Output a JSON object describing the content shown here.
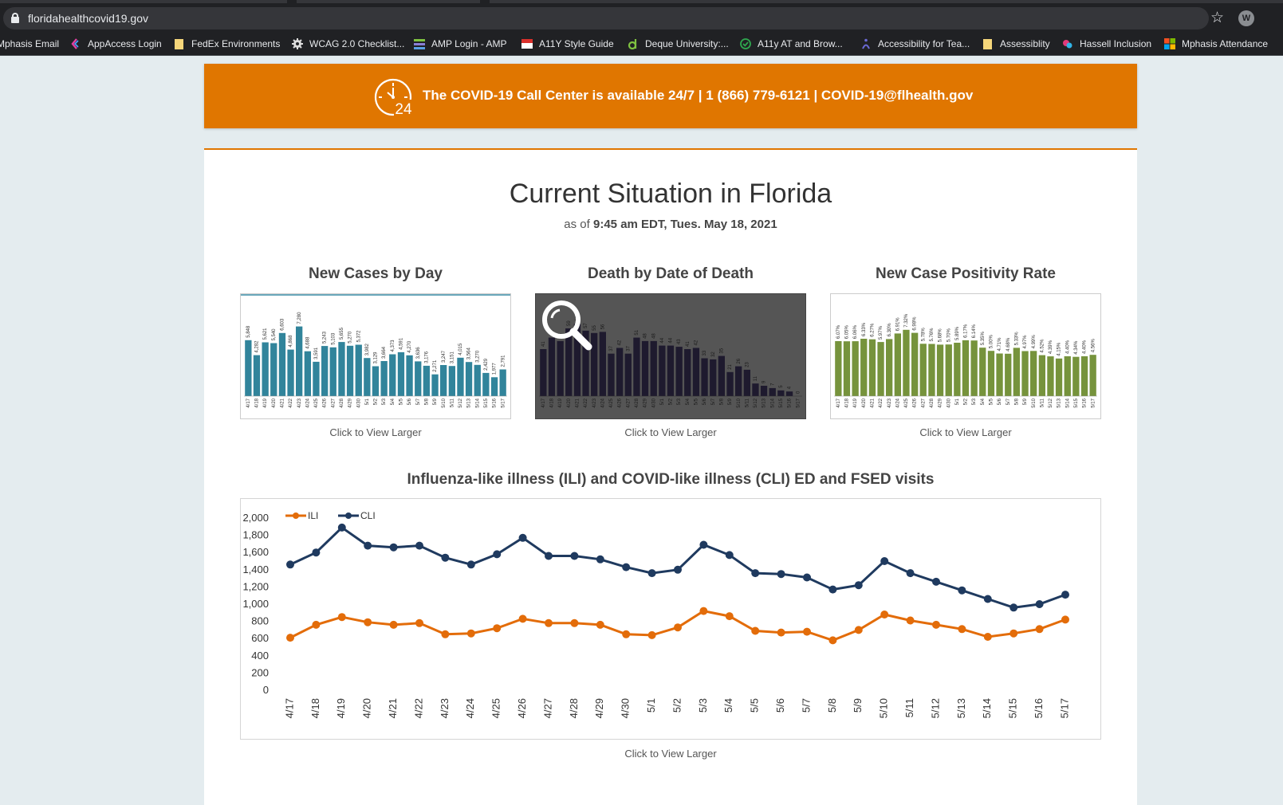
{
  "browser": {
    "url": "floridahealthcovid19.gov",
    "profile_initial": "W",
    "bookmarks": [
      {
        "label": "Mphasis Email",
        "icon": "mail-icon"
      },
      {
        "label": "AppAccess Login",
        "icon": "app-icon"
      },
      {
        "label": "FedEx Environments",
        "icon": "folder-icon"
      },
      {
        "label": "WCAG 2.0 Checklist...",
        "icon": "gear-icon"
      },
      {
        "label": "AMP Login - AMP",
        "icon": "stack-icon"
      },
      {
        "label": "A11Y Style Guide",
        "icon": "style-guide-icon"
      },
      {
        "label": "Deque University:...",
        "icon": "deque-icon"
      },
      {
        "label": "A11y AT and Brow...",
        "icon": "check-circle-icon"
      },
      {
        "label": "Accessibility for Tea...",
        "icon": "accessibility-icon"
      },
      {
        "label": "Assessiblity",
        "icon": "folder-icon"
      },
      {
        "label": "Hassell Inclusion",
        "icon": "hassell-icon"
      },
      {
        "label": "Mphasis Attendance",
        "icon": "windows-icon"
      }
    ]
  },
  "banner": {
    "text": "The COVID-19 Call Center is available 24/7 | 1 (866) 779-6121 | COVID-19@flhealth.gov",
    "icon_label": "24"
  },
  "page": {
    "title": "Current Situation in Florida",
    "subtitle_prefix": "as of",
    "subtitle_time": "9:45 am EDT, Tues. May 18, 2021"
  },
  "colors": {
    "orange": "#e07600",
    "teal_bar": "#31849b",
    "dark_bar": "#1e1a2e",
    "green_bar": "#76933c",
    "ili_line": "#e36c09",
    "cli_line": "#1f3a5f"
  },
  "chart_data": [
    {
      "type": "bar",
      "title": "New Cases by Day",
      "caption": "Click to View Larger",
      "categories": [
        "4/17",
        "4/18",
        "4/19",
        "4/20",
        "4/21",
        "4/22",
        "4/23",
        "4/24",
        "4/25",
        "4/26",
        "4/27",
        "4/28",
        "4/29",
        "4/30",
        "5/1",
        "5/2",
        "5/3",
        "5/4",
        "5/5",
        "5/6",
        "5/7",
        "5/8",
        "5/9",
        "5/10",
        "5/11",
        "5/12",
        "5/13",
        "5/14",
        "5/15",
        "5/16",
        "5/17"
      ],
      "values": [
        5848,
        4282,
        5621,
        5540,
        6603,
        4868,
        7280,
        4688,
        3591,
        5243,
        5103,
        5655,
        5270,
        5372,
        3982,
        3129,
        3664,
        4373,
        4591,
        4270,
        3636,
        3176,
        2271,
        3247,
        3151,
        4015,
        3564,
        3270,
        2429,
        1977,
        2791
      ],
      "ylim": [
        0,
        9000
      ]
    },
    {
      "type": "bar",
      "title": "Death by Date of Death",
      "caption": "Click to View Larger",
      "categories": [
        "4/17",
        "4/18",
        "4/19",
        "4/20",
        "4/21",
        "4/22",
        "4/23",
        "4/24",
        "4/25",
        "4/26",
        "4/27",
        "4/28",
        "4/29",
        "4/30",
        "5/1",
        "5/2",
        "5/3",
        "5/4",
        "5/5",
        "5/6",
        "5/7",
        "5/8",
        "5/9",
        "5/10",
        "5/11",
        "5/12",
        "5/13",
        "5/14",
        "5/15",
        "5/16",
        "5/17"
      ],
      "values": [
        41,
        51,
        48,
        59,
        63,
        57,
        55,
        56,
        37,
        42,
        37,
        51,
        48,
        48,
        44,
        44,
        43,
        41,
        42,
        33,
        32,
        35,
        21,
        26,
        23,
        11,
        9,
        7,
        5,
        4,
        0
      ],
      "ylim": [
        0,
        75
      ]
    },
    {
      "type": "bar",
      "title": "New Case Positivity Rate",
      "caption": "Click to View Larger",
      "categories": [
        "4/17",
        "4/18",
        "4/19",
        "4/20",
        "4/21",
        "4/22",
        "4/23",
        "4/24",
        "4/25",
        "4/26",
        "4/27",
        "4/28",
        "4/29",
        "4/30",
        "5/1",
        "5/2",
        "5/3",
        "5/4",
        "5/5",
        "5/6",
        "5/7",
        "5/8",
        "5/9",
        "5/10",
        "5/11",
        "5/12",
        "5/13",
        "5/14",
        "5/15",
        "5/16",
        "5/17"
      ],
      "values": [
        6.07,
        6.05,
        6.06,
        6.33,
        6.27,
        5.97,
        6.3,
        6.91,
        7.32,
        6.98,
        5.78,
        5.76,
        5.68,
        5.7,
        5.89,
        6.17,
        6.14,
        5.35,
        5.0,
        4.71,
        4.68,
        5.33,
        4.97,
        4.99,
        4.52,
        4.39,
        4.15,
        4.4,
        4.34,
        4.4,
        4.56
      ],
      "value_labels": [
        "6.07%",
        "6.05%",
        "6.06%",
        "6.33%",
        "6.27%",
        "5.97%",
        "6.30%",
        "6.91%",
        "7.32%",
        "6.98%",
        "5.78%",
        "5.76%",
        "5.68%",
        "5.70%",
        "5.89%",
        "6.17%",
        "6.14%",
        "5.35%",
        "5.00%",
        "4.71%",
        "4.68%",
        "5.33%",
        "4.97%",
        "4.99%",
        "4.52%",
        "4.39%",
        "4.15%",
        "4.40%",
        "4.34%",
        "4.40%",
        "4.56%"
      ],
      "ylim": [
        0,
        9.5
      ]
    },
    {
      "type": "line",
      "title": "Influenza-like illness (ILI) and COVID-like illness (CLI) ED and FSED visits",
      "caption": "Click to View Larger",
      "x": [
        "4/17",
        "4/18",
        "4/19",
        "4/20",
        "4/21",
        "4/22",
        "4/23",
        "4/24",
        "4/25",
        "4/26",
        "4/27",
        "4/28",
        "4/29",
        "4/30",
        "5/1",
        "5/2",
        "5/3",
        "5/4",
        "5/5",
        "5/6",
        "5/7",
        "5/8",
        "5/9",
        "5/10",
        "5/11",
        "5/12",
        "5/13",
        "5/14",
        "5/15",
        "5/16",
        "5/17"
      ],
      "series": [
        {
          "name": "ILI",
          "values": [
            610,
            760,
            850,
            790,
            760,
            780,
            650,
            660,
            720,
            830,
            780,
            780,
            760,
            650,
            640,
            730,
            920,
            860,
            690,
            670,
            680,
            580,
            700,
            880,
            810,
            760,
            710,
            620,
            660,
            710,
            820
          ]
        },
        {
          "name": "CLI",
          "values": [
            1460,
            1600,
            1890,
            1680,
            1660,
            1680,
            1540,
            1460,
            1580,
            1770,
            1560,
            1560,
            1520,
            1430,
            1360,
            1400,
            1690,
            1570,
            1360,
            1350,
            1310,
            1170,
            1220,
            1500,
            1360,
            1260,
            1160,
            1060,
            960,
            1000,
            1110
          ]
        }
      ],
      "yticks": [
        "0",
        "200",
        "400",
        "600",
        "800",
        "1,000",
        "1,200",
        "1,400",
        "1,600",
        "1,800",
        "2,000"
      ],
      "ylim": [
        0,
        2000
      ],
      "legend": "top-left",
      "grid": false
    }
  ]
}
